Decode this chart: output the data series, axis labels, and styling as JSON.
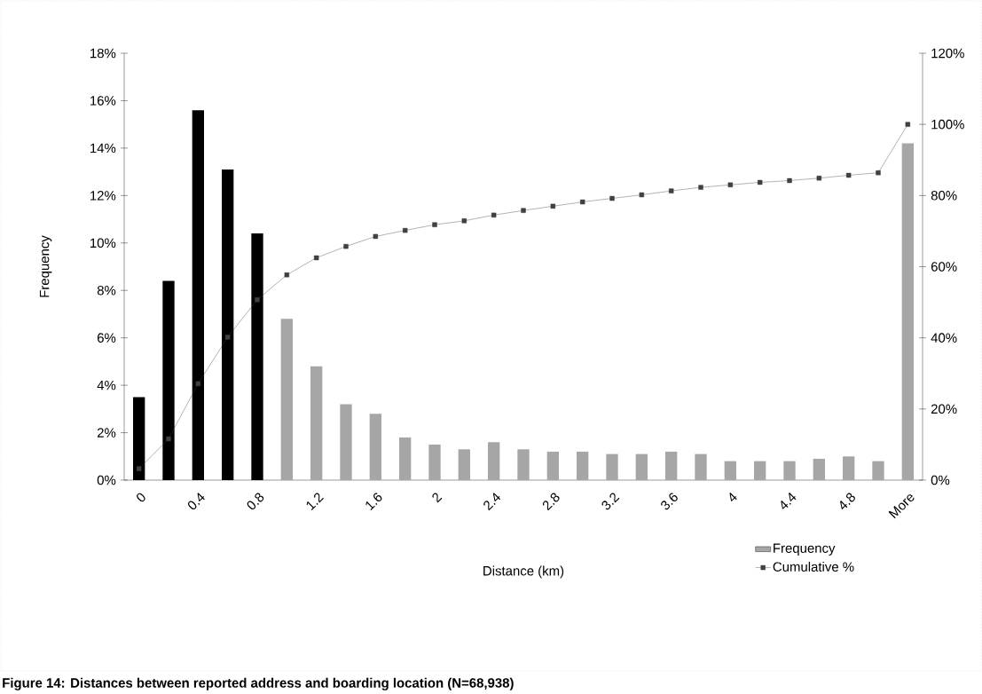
{
  "chart_data": {
    "type": "bar",
    "title": "Figure 14:  Distances between reported address and boarding location (N=68,938)",
    "xlabel": "Distance (km)",
    "ylabel": "Frequency",
    "categories": [
      "0",
      null,
      "0.4",
      null,
      "0.8",
      null,
      "1.2",
      null,
      "1.6",
      null,
      "2",
      null,
      "2.4",
      null,
      "2.8",
      null,
      "3.2",
      null,
      "3.6",
      null,
      "4",
      null,
      "4.4",
      null,
      "4.8",
      null,
      "More"
    ],
    "series": [
      {
        "name": "Frequency",
        "colors": [
          "#000000",
          "#000000",
          "#000000",
          "#000000",
          "#000000",
          "#a6a6a6",
          "#a6a6a6",
          "#a6a6a6",
          "#a6a6a6",
          "#a6a6a6",
          "#a6a6a6",
          "#a6a6a6",
          "#a6a6a6",
          "#a6a6a6",
          "#a6a6a6",
          "#a6a6a6",
          "#a6a6a6",
          "#a6a6a6",
          "#a6a6a6",
          "#a6a6a6",
          "#a6a6a6",
          "#a6a6a6",
          "#a6a6a6",
          "#a6a6a6",
          "#a6a6a6",
          "#a6a6a6",
          "#a6a6a6"
        ],
        "values": [
          3.5,
          8.4,
          15.6,
          13.1,
          10.4,
          6.8,
          4.8,
          3.2,
          2.8,
          1.8,
          1.5,
          1.3,
          1.6,
          1.3,
          1.2,
          1.2,
          1.1,
          1.1,
          1.2,
          1.1,
          0.8,
          0.8,
          0.8,
          0.9,
          1.0,
          0.8,
          14.2
        ]
      },
      {
        "name": "Cumulative %",
        "type": "line",
        "axis": "y2",
        "color": "#404040",
        "marker": "square",
        "line_style": "solid",
        "values": [
          3.2,
          11.6,
          27.1,
          40.2,
          50.7,
          57.7,
          62.5,
          65.7,
          68.5,
          70.2,
          71.8,
          72.9,
          74.5,
          75.8,
          77.0,
          78.2,
          79.2,
          80.2,
          81.3,
          82.3,
          83.0,
          83.7,
          84.2,
          84.9,
          85.7,
          86.4,
          100
        ]
      }
    ],
    "ylim": [
      0,
      18
    ],
    "yticks": [
      {
        "value": 0,
        "label": "0%"
      },
      {
        "value": 2,
        "label": "2%"
      },
      {
        "value": 4,
        "label": "4%"
      },
      {
        "value": 6,
        "label": "6%"
      },
      {
        "value": 8,
        "label": "8%"
      },
      {
        "value": 10,
        "label": "10%"
      },
      {
        "value": 12,
        "label": "12%"
      },
      {
        "value": 14,
        "label": "14%"
      },
      {
        "value": 16,
        "label": "16%"
      },
      {
        "value": 18,
        "label": "18%"
      }
    ],
    "y2lim": [
      0,
      120
    ],
    "y2ticks": [
      {
        "value": 0,
        "label": "0%"
      },
      {
        "value": 20,
        "label": "20%"
      },
      {
        "value": 40,
        "label": "40%"
      },
      {
        "value": 60,
        "label": "60%"
      },
      {
        "value": 80,
        "label": "80%"
      },
      {
        "value": 100,
        "label": "100%"
      },
      {
        "value": 120,
        "label": "120%"
      }
    ],
    "legend": "bottom right"
  }
}
